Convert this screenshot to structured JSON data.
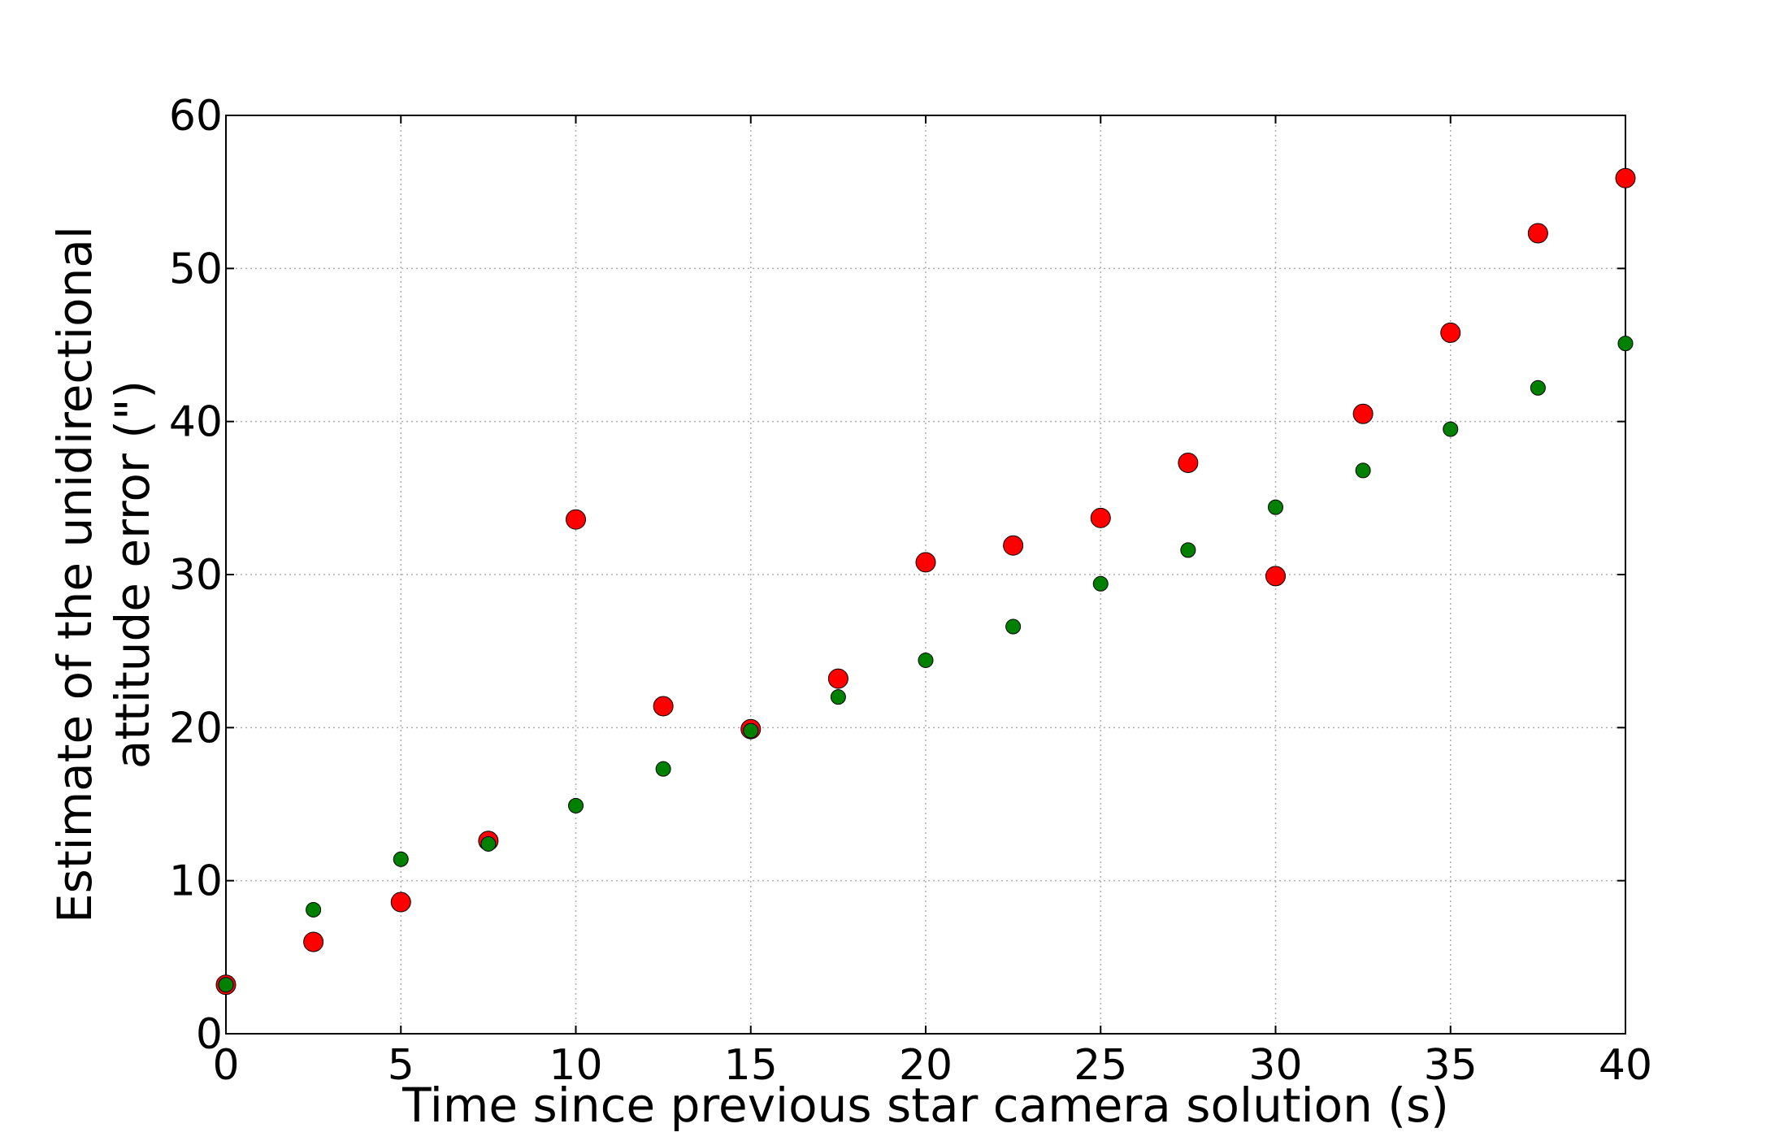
{
  "chart_data": {
    "type": "scatter",
    "title": "",
    "xlabel": "Time since previous star camera solution (s)",
    "ylabel_lines": [
      "Estimate of the unidirectional",
      "attitude error (\")"
    ],
    "xlim": [
      0,
      40
    ],
    "ylim": [
      0,
      60
    ],
    "xticks": [
      0,
      5,
      10,
      15,
      20,
      25,
      30,
      35,
      40
    ],
    "yticks": [
      0,
      10,
      20,
      30,
      40,
      50,
      60
    ],
    "xtick_labels": [
      "0",
      "5",
      "10",
      "15",
      "20",
      "25",
      "30",
      "35",
      "40"
    ],
    "ytick_labels": [
      "0",
      "10",
      "20",
      "30",
      "40",
      "50",
      "60"
    ],
    "grid": true,
    "legend": "none",
    "x": [
      0,
      2.5,
      5,
      7.5,
      10,
      12.5,
      15,
      17.5,
      20,
      22.5,
      25,
      27.5,
      30,
      32.5,
      35,
      37.5,
      40
    ],
    "series": [
      {
        "color": "#ff0000",
        "marker_size": "large",
        "values": [
          3.2,
          6.0,
          8.6,
          12.6,
          33.6,
          21.4,
          19.9,
          23.2,
          30.8,
          31.9,
          33.7,
          37.3,
          29.9,
          40.5,
          45.8,
          52.3,
          55.9
        ]
      },
      {
        "color": "#008000",
        "marker_size": "small",
        "values": [
          3.2,
          8.1,
          11.4,
          12.4,
          14.9,
          17.3,
          19.8,
          22.0,
          24.4,
          26.6,
          29.4,
          31.6,
          34.4,
          36.8,
          39.5,
          42.2,
          45.1
        ]
      }
    ]
  }
}
